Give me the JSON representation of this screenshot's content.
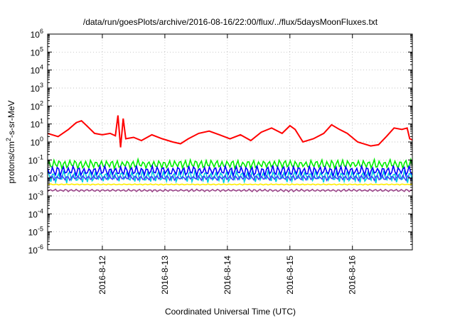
{
  "chart_data": {
    "type": "line",
    "title": "/data/run/goesPlots/archive/2016-08-16/22:00/flux/../flux/5daysMoonFluxes.txt",
    "xlabel": "Coordinated Universal Time (UTC)",
    "ylabel": "protons/cm²-s-sr-MeV",
    "yscale": "log",
    "xlim": [
      "2016-08-11T03:00",
      "2016-08-16T23:00"
    ],
    "ylim": [
      1e-06,
      1000000.0
    ],
    "grid": true,
    "x_ticks": [
      "2016-8-12",
      "2016-8-13",
      "2016-8-14",
      "2016-8-15",
      "2016-8-16"
    ],
    "y_ticks": [
      {
        "base": "10",
        "exp": "-6",
        "value": 1e-06
      },
      {
        "base": "10",
        "exp": "-5",
        "value": 1e-05
      },
      {
        "base": "10",
        "exp": "-4",
        "value": 0.0001
      },
      {
        "base": "10",
        "exp": "-3",
        "value": 0.001
      },
      {
        "base": "10",
        "exp": "-2",
        "value": 0.01
      },
      {
        "base": "10",
        "exp": "-1",
        "value": 0.1
      },
      {
        "base": "10",
        "exp": "0",
        "value": 1
      },
      {
        "base": "10",
        "exp": "1",
        "value": 10
      },
      {
        "base": "10",
        "exp": "2",
        "value": 100
      },
      {
        "base": "10",
        "exp": "3",
        "value": 1000
      },
      {
        "base": "10",
        "exp": "4",
        "value": 10000
      },
      {
        "base": "10",
        "exp": "5",
        "value": 100000
      },
      {
        "base": "10",
        "exp": "6",
        "value": 1000000
      }
    ],
    "series": [
      {
        "color": "#ff0000",
        "x": [
          "2016-08-11T03:00",
          "2016-08-11T07:00",
          "2016-08-11T11:00",
          "2016-08-11T14:00",
          "2016-08-11T16:00",
          "2016-08-11T18:00",
          "2016-08-11T21:00",
          "2016-08-12T00:00",
          "2016-08-12T03:00",
          "2016-08-12T05:00",
          "2016-08-12T06:00",
          "2016-08-12T07:00",
          "2016-08-12T08:00",
          "2016-08-12T09:00",
          "2016-08-12T12:00",
          "2016-08-12T15:00",
          "2016-08-12T19:00",
          "2016-08-12T23:00",
          "2016-08-13T03:00",
          "2016-08-13T06:00",
          "2016-08-13T09:00",
          "2016-08-13T13:00",
          "2016-08-13T17:00",
          "2016-08-13T21:00",
          "2016-08-14T01:00",
          "2016-08-14T05:00",
          "2016-08-14T09:00",
          "2016-08-14T13:00",
          "2016-08-14T17:00",
          "2016-08-14T21:00",
          "2016-08-15T00:00",
          "2016-08-15T02:00",
          "2016-08-15T05:00",
          "2016-08-15T09:00",
          "2016-08-15T13:00",
          "2016-08-15T16:00",
          "2016-08-15T19:00",
          "2016-08-15T22:00",
          "2016-08-16T02:00",
          "2016-08-16T07:00",
          "2016-08-16T10:00",
          "2016-08-16T13:00",
          "2016-08-16T16:00",
          "2016-08-16T19:00",
          "2016-08-16T21:00",
          "2016-08-16T22:00",
          "2016-08-16T23:00"
        ],
        "values": [
          3,
          2,
          5,
          12,
          15,
          8,
          3,
          2.5,
          3,
          2.2,
          30,
          0.5,
          20,
          1.5,
          1.8,
          1.2,
          2.5,
          1.5,
          1,
          0.8,
          1.5,
          3,
          4,
          2.5,
          1.5,
          2.5,
          1.2,
          3.5,
          6,
          3,
          8,
          5,
          1,
          1.5,
          3,
          9,
          5,
          3,
          1,
          0.6,
          0.7,
          2,
          6,
          5,
          6,
          1.5,
          1.3
        ]
      }
    ],
    "bands": [
      {
        "color": "#00ee00",
        "low": 0.03,
        "high": 0.11
      },
      {
        "color": "#00ccdd",
        "low": 0.005,
        "high": 0.03
      },
      {
        "color": "#0000ff",
        "low": 0.012,
        "high": 0.05
      },
      {
        "color": "#4040ff",
        "low": 0.007,
        "high": 0.015
      },
      {
        "color": "#ffee00",
        "low": 0.004,
        "high": 0.0047
      },
      {
        "color": "#994488",
        "low": 0.0017,
        "high": 0.0024
      }
    ]
  }
}
